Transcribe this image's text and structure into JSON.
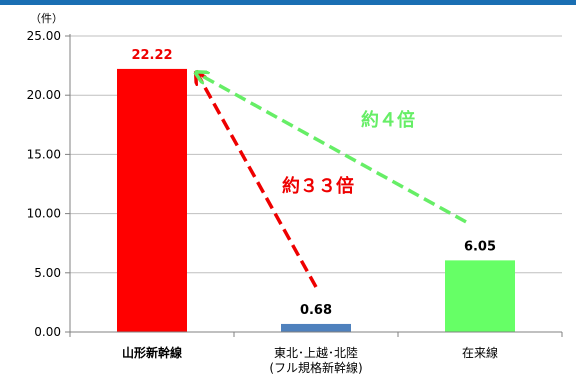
{
  "chart_data": {
    "type": "bar",
    "unit": "（件）",
    "categories": [
      {
        "lines": [
          "山形新幹線"
        ],
        "color": "#ee0000",
        "bold": true
      },
      {
        "lines": [
          "東北･上越･北陸",
          "(フル規格新幹線)"
        ],
        "color": "#000000",
        "bold": false
      },
      {
        "lines": [
          "在来線"
        ],
        "color": "#000000",
        "bold": false
      }
    ],
    "values": [
      22.22,
      0.68,
      6.05
    ],
    "value_labels": [
      "22.22",
      "0.68",
      "6.05"
    ],
    "value_label_colors": [
      "#ee0000",
      "#000000",
      "#000000"
    ],
    "bar_colors": [
      "#ff0000",
      "#4f81bd",
      "#66ff66"
    ],
    "ylim": [
      0,
      25
    ],
    "yticks": [
      "0.00",
      "5.00",
      "10.00",
      "15.00",
      "20.00",
      "25.00"
    ],
    "grid": true,
    "annotations": [
      {
        "text": "約３３倍",
        "color": "#ee0000",
        "from_category": 1,
        "from_value": 3.8,
        "to_category": 0,
        "to_value": 22.2
      },
      {
        "text": "約４倍",
        "color": "#66ee66",
        "from_category": 2,
        "from_value": 9.3,
        "to_category": 0,
        "to_value": 22.2
      }
    ]
  }
}
